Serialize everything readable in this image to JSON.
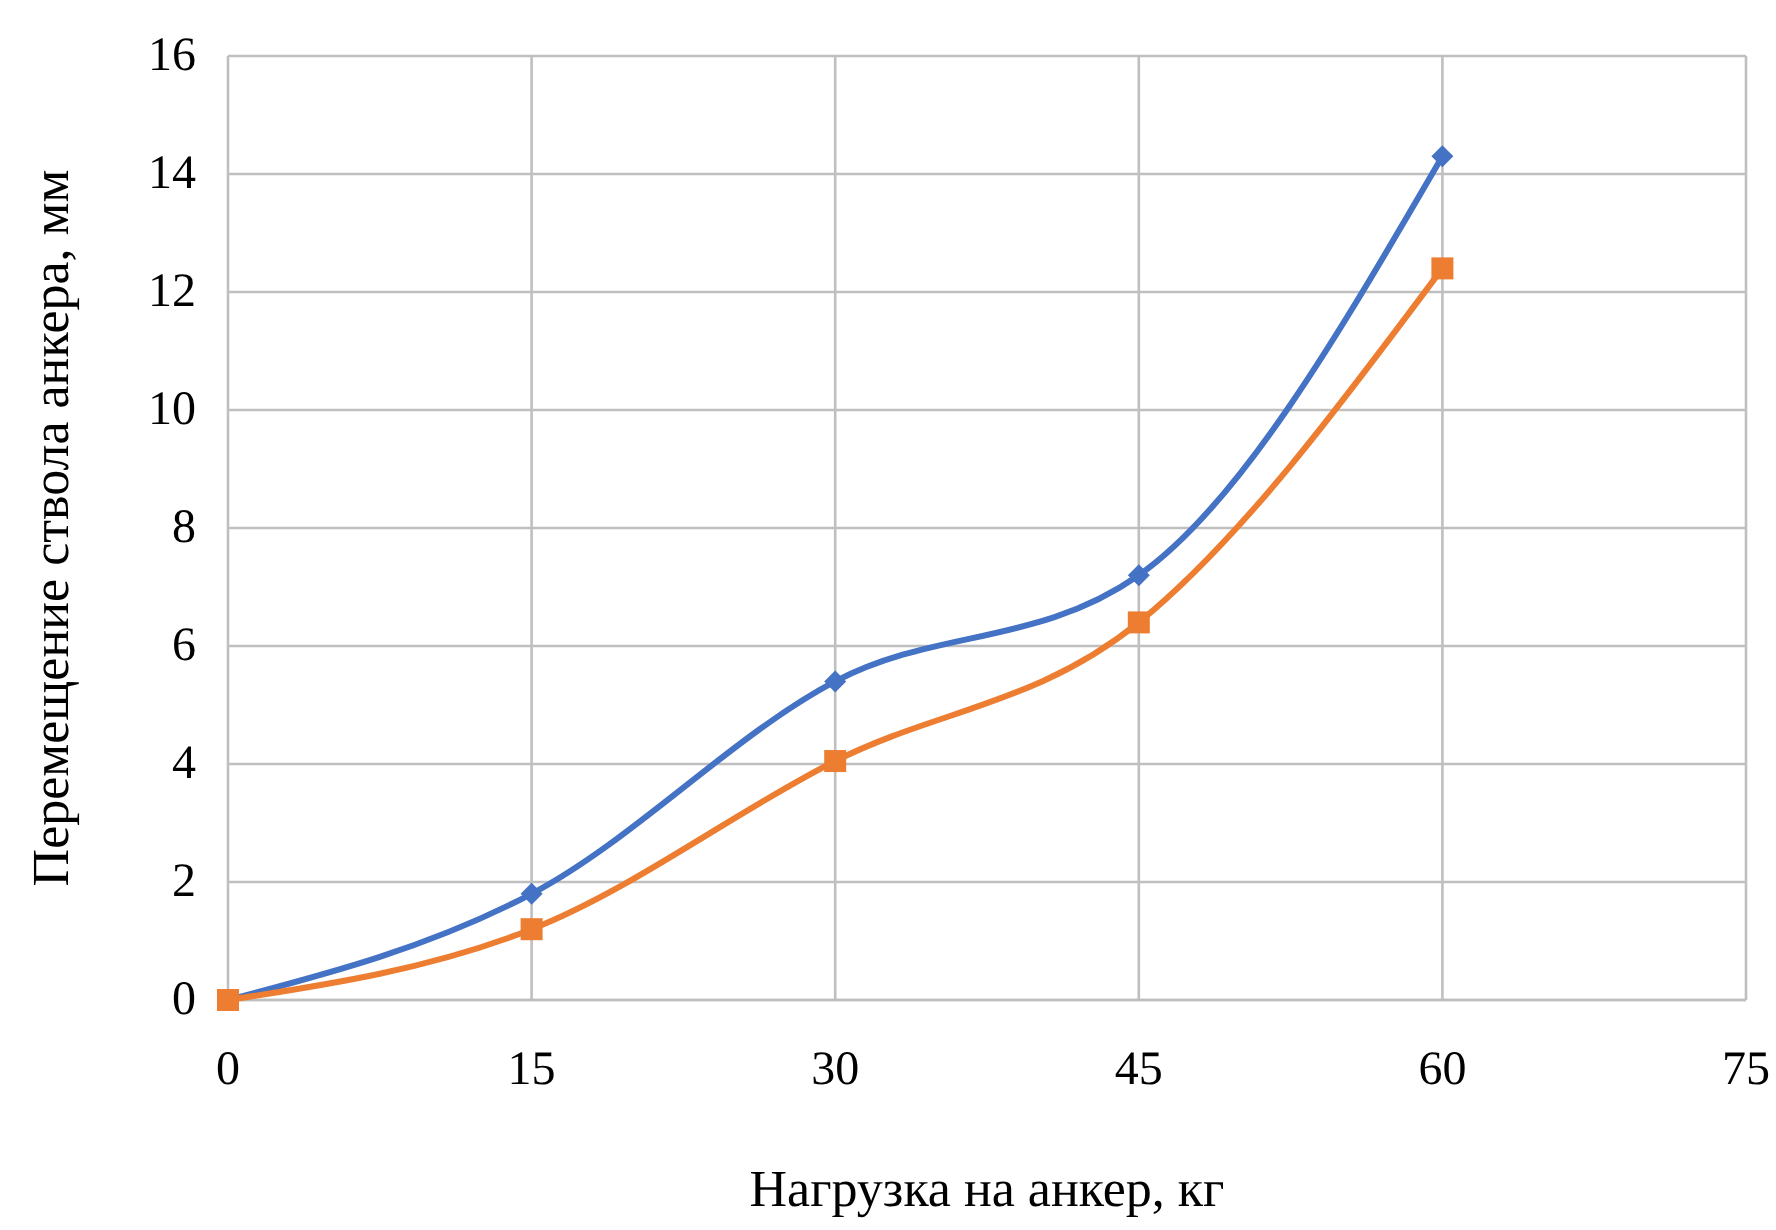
{
  "chart_data": {
    "type": "line",
    "xlabel": "Нагрузка на анкер, кг",
    "ylabel": "Перемещение ствола анкера, мм",
    "x": [
      0,
      15,
      30,
      45,
      60
    ],
    "series": [
      {
        "color": "#4472c4",
        "marker": "diamond",
        "values": [
          0,
          1.8,
          5.4,
          7.2,
          14.3
        ]
      },
      {
        "color": "#ed7d31",
        "marker": "square",
        "values": [
          0,
          1.2,
          4.05,
          6.4,
          12.4
        ]
      }
    ],
    "xlim": [
      0,
      75
    ],
    "xticks": [
      0,
      15,
      30,
      45,
      60,
      75
    ],
    "ylim": [
      0,
      16
    ],
    "yticks": [
      0,
      2,
      4,
      6,
      8,
      10,
      12,
      14,
      16
    ],
    "grid": true
  }
}
